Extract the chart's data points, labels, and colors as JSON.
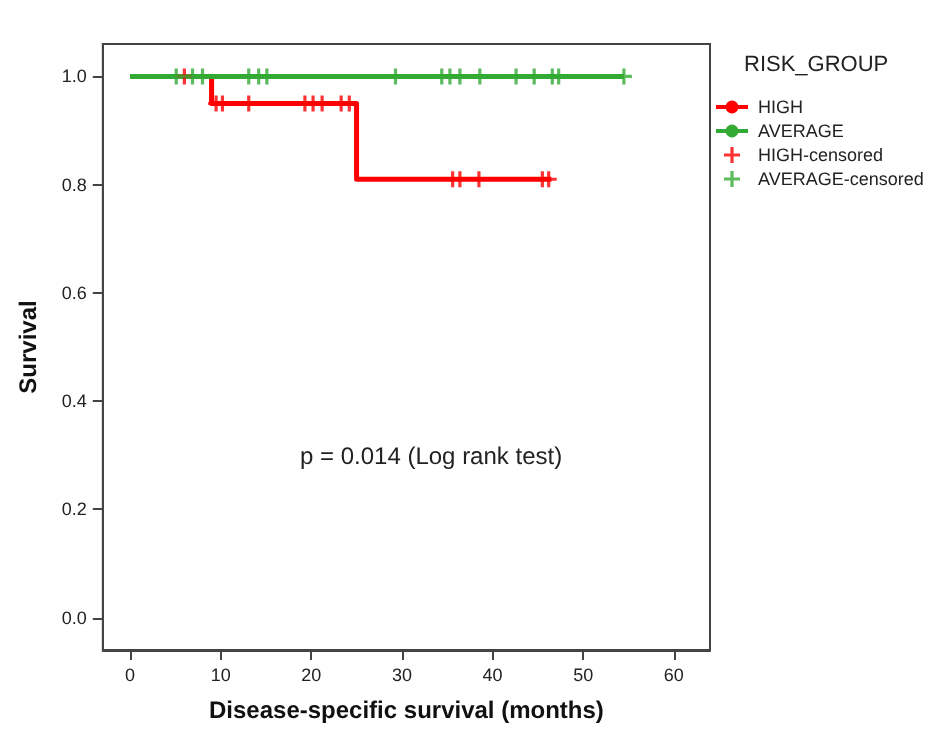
{
  "chart_data": {
    "type": "step",
    "xlabel": "Disease-specific survival (months)",
    "ylabel": "Survival",
    "legend_title": "RISK_GROUP",
    "legend": "right",
    "grid": false,
    "xlim": [
      -3,
      64
    ],
    "xticks": [
      0,
      10,
      20,
      30,
      40,
      50,
      60
    ],
    "ylim": [
      -0.06,
      1.06
    ],
    "yticks": [
      {
        "value": 0,
        "label": "0.0"
      },
      {
        "value": 0.2,
        "label": "0.2"
      },
      {
        "value": 0.4,
        "label": "0.4"
      },
      {
        "value": 0.6,
        "label": "0.6"
      },
      {
        "value": 0.8,
        "label": "0.8"
      },
      {
        "value": 1,
        "label": "1.0"
      }
    ],
    "annotations": [
      "p = 0.014 (Log rank test)"
    ],
    "series": [
      {
        "name": "HIGH",
        "color": "#ff0000",
        "marker": "none",
        "x": [
          0,
          9,
          25,
          46.5
        ],
        "values": [
          1,
          0.95,
          0.81,
          0.81
        ]
      },
      {
        "name": "AVERAGE",
        "color": "#33aa33",
        "marker": "none",
        "x": [
          0,
          54.5
        ],
        "values": [
          1,
          1
        ]
      },
      {
        "name": "HIGH-censored",
        "type": "scatter",
        "color": "#ff0000",
        "marker": "cross",
        "x": [
          6,
          9.5,
          10.2,
          13.1,
          19.3,
          20.2,
          21.2,
          23.3,
          24.2,
          35.6,
          36.4,
          38.5,
          45.5,
          46.2
        ],
        "values": [
          1,
          0.95,
          0.95,
          0.95,
          0.95,
          0.95,
          0.95,
          0.95,
          0.95,
          0.81,
          0.81,
          0.81,
          0.81,
          0.81
        ]
      },
      {
        "name": "AVERAGE-censored",
        "type": "scatter",
        "color": "#33aa33",
        "marker": "cross",
        "x": [
          5.1,
          6.9,
          8,
          13.1,
          14.2,
          15.1,
          29.3,
          34.4,
          35.3,
          36.4,
          38.6,
          42.6,
          44.6,
          46.6,
          47.3,
          54.5
        ],
        "values": [
          1,
          1,
          1,
          1,
          1,
          1,
          1,
          1,
          1,
          1,
          1,
          1,
          1,
          1,
          1,
          1
        ]
      }
    ]
  }
}
